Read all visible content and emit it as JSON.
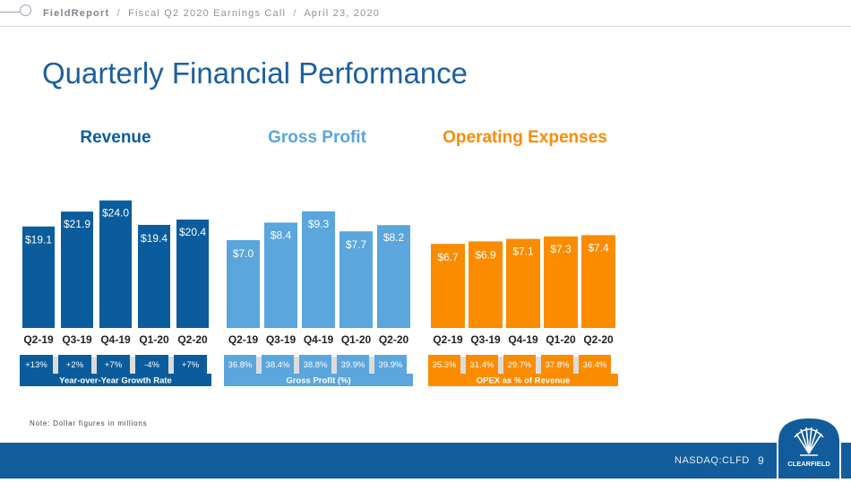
{
  "header": {
    "brand": "FieldReport",
    "crumb_event": "Fiscal Q2 2020 Earnings Call",
    "crumb_date": "April 23, 2020",
    "separator": "/"
  },
  "slide": {
    "title": "Quarterly Financial Performance",
    "note": "Note: Dollar figures in millions"
  },
  "footer": {
    "ticker": "NASDAQ:CLFD",
    "page_number": "9",
    "logo_text": "CLEARFIELD"
  },
  "colors": {
    "revenue": "#0b5c9c",
    "gross_profit": "#5aa6dd",
    "opex": "#fb8c00",
    "title": "#1c5f9e",
    "footer": "#125c9c"
  },
  "chart_data": [
    {
      "type": "bar",
      "title": "Revenue",
      "categories": [
        "Q2-19",
        "Q3-19",
        "Q4-19",
        "Q1-20",
        "Q2-20"
      ],
      "values": [
        19.1,
        21.9,
        24.0,
        19.4,
        20.4
      ],
      "value_labels": [
        "$19.1",
        "$21.9",
        "$24.0",
        "$19.4",
        "$20.4"
      ],
      "units": "USD millions",
      "sub_table": {
        "label": "Year-over-Year Growth Rate",
        "values": [
          "+13%",
          "+2%",
          "+7%",
          "-4%",
          "+7%"
        ]
      },
      "ylim": [
        0,
        26
      ]
    },
    {
      "type": "bar",
      "title": "Gross Profit",
      "categories": [
        "Q2-19",
        "Q3-19",
        "Q4-19",
        "Q1-20",
        "Q2-20"
      ],
      "values": [
        7.0,
        8.4,
        9.3,
        7.7,
        8.2
      ],
      "value_labels": [
        "$7.0",
        "$8.4",
        "$9.3",
        "$7.7",
        "$8.2"
      ],
      "units": "USD millions",
      "sub_table": {
        "label": "Gross Profit (%)",
        "values": [
          "36.8%",
          "38.4%",
          "38.8%",
          "39.9%",
          "39.9%"
        ]
      },
      "ylim": [
        0,
        10.5
      ]
    },
    {
      "type": "bar",
      "title": "Operating Expenses",
      "categories": [
        "Q2-19",
        "Q3-19",
        "Q4-19",
        "Q1-20",
        "Q2-20"
      ],
      "values": [
        6.7,
        6.9,
        7.1,
        7.3,
        7.4
      ],
      "value_labels": [
        "$6.7",
        "$6.9",
        "$7.1",
        "$7.3",
        "$7.4"
      ],
      "units": "USD millions",
      "sub_table": {
        "label": "OPEX as % of Revenue",
        "values": [
          "35.3%",
          "31.4%",
          "29.7%",
          "37.8%",
          "36.4%"
        ]
      },
      "ylim": [
        0,
        10.5
      ]
    }
  ]
}
